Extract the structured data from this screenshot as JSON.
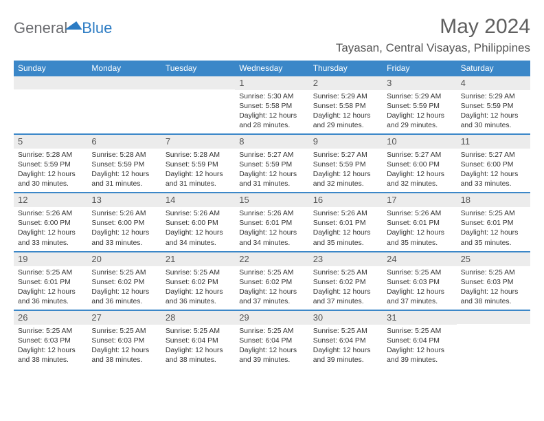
{
  "brand": {
    "part1": "General",
    "part2": "Blue"
  },
  "title": "May 2024",
  "location": "Tayasan, Central Visayas, Philippines",
  "colors": {
    "header_bg": "#3b87c8",
    "header_text": "#ffffff",
    "band_bg": "#ececec",
    "rule": "#3b87c8",
    "body_text": "#333333",
    "title_text": "#5f5f5f"
  },
  "dow": [
    "Sunday",
    "Monday",
    "Tuesday",
    "Wednesday",
    "Thursday",
    "Friday",
    "Saturday"
  ],
  "weeks": [
    [
      {
        "day": "",
        "sunrise": "",
        "sunset": "",
        "daylight1": "",
        "daylight2": ""
      },
      {
        "day": "",
        "sunrise": "",
        "sunset": "",
        "daylight1": "",
        "daylight2": ""
      },
      {
        "day": "",
        "sunrise": "",
        "sunset": "",
        "daylight1": "",
        "daylight2": ""
      },
      {
        "day": "1",
        "sunrise": "Sunrise: 5:30 AM",
        "sunset": "Sunset: 5:58 PM",
        "daylight1": "Daylight: 12 hours",
        "daylight2": "and 28 minutes."
      },
      {
        "day": "2",
        "sunrise": "Sunrise: 5:29 AM",
        "sunset": "Sunset: 5:58 PM",
        "daylight1": "Daylight: 12 hours",
        "daylight2": "and 29 minutes."
      },
      {
        "day": "3",
        "sunrise": "Sunrise: 5:29 AM",
        "sunset": "Sunset: 5:59 PM",
        "daylight1": "Daylight: 12 hours",
        "daylight2": "and 29 minutes."
      },
      {
        "day": "4",
        "sunrise": "Sunrise: 5:29 AM",
        "sunset": "Sunset: 5:59 PM",
        "daylight1": "Daylight: 12 hours",
        "daylight2": "and 30 minutes."
      }
    ],
    [
      {
        "day": "5",
        "sunrise": "Sunrise: 5:28 AM",
        "sunset": "Sunset: 5:59 PM",
        "daylight1": "Daylight: 12 hours",
        "daylight2": "and 30 minutes."
      },
      {
        "day": "6",
        "sunrise": "Sunrise: 5:28 AM",
        "sunset": "Sunset: 5:59 PM",
        "daylight1": "Daylight: 12 hours",
        "daylight2": "and 31 minutes."
      },
      {
        "day": "7",
        "sunrise": "Sunrise: 5:28 AM",
        "sunset": "Sunset: 5:59 PM",
        "daylight1": "Daylight: 12 hours",
        "daylight2": "and 31 minutes."
      },
      {
        "day": "8",
        "sunrise": "Sunrise: 5:27 AM",
        "sunset": "Sunset: 5:59 PM",
        "daylight1": "Daylight: 12 hours",
        "daylight2": "and 31 minutes."
      },
      {
        "day": "9",
        "sunrise": "Sunrise: 5:27 AM",
        "sunset": "Sunset: 5:59 PM",
        "daylight1": "Daylight: 12 hours",
        "daylight2": "and 32 minutes."
      },
      {
        "day": "10",
        "sunrise": "Sunrise: 5:27 AM",
        "sunset": "Sunset: 6:00 PM",
        "daylight1": "Daylight: 12 hours",
        "daylight2": "and 32 minutes."
      },
      {
        "day": "11",
        "sunrise": "Sunrise: 5:27 AM",
        "sunset": "Sunset: 6:00 PM",
        "daylight1": "Daylight: 12 hours",
        "daylight2": "and 33 minutes."
      }
    ],
    [
      {
        "day": "12",
        "sunrise": "Sunrise: 5:26 AM",
        "sunset": "Sunset: 6:00 PM",
        "daylight1": "Daylight: 12 hours",
        "daylight2": "and 33 minutes."
      },
      {
        "day": "13",
        "sunrise": "Sunrise: 5:26 AM",
        "sunset": "Sunset: 6:00 PM",
        "daylight1": "Daylight: 12 hours",
        "daylight2": "and 33 minutes."
      },
      {
        "day": "14",
        "sunrise": "Sunrise: 5:26 AM",
        "sunset": "Sunset: 6:00 PM",
        "daylight1": "Daylight: 12 hours",
        "daylight2": "and 34 minutes."
      },
      {
        "day": "15",
        "sunrise": "Sunrise: 5:26 AM",
        "sunset": "Sunset: 6:01 PM",
        "daylight1": "Daylight: 12 hours",
        "daylight2": "and 34 minutes."
      },
      {
        "day": "16",
        "sunrise": "Sunrise: 5:26 AM",
        "sunset": "Sunset: 6:01 PM",
        "daylight1": "Daylight: 12 hours",
        "daylight2": "and 35 minutes."
      },
      {
        "day": "17",
        "sunrise": "Sunrise: 5:26 AM",
        "sunset": "Sunset: 6:01 PM",
        "daylight1": "Daylight: 12 hours",
        "daylight2": "and 35 minutes."
      },
      {
        "day": "18",
        "sunrise": "Sunrise: 5:25 AM",
        "sunset": "Sunset: 6:01 PM",
        "daylight1": "Daylight: 12 hours",
        "daylight2": "and 35 minutes."
      }
    ],
    [
      {
        "day": "19",
        "sunrise": "Sunrise: 5:25 AM",
        "sunset": "Sunset: 6:01 PM",
        "daylight1": "Daylight: 12 hours",
        "daylight2": "and 36 minutes."
      },
      {
        "day": "20",
        "sunrise": "Sunrise: 5:25 AM",
        "sunset": "Sunset: 6:02 PM",
        "daylight1": "Daylight: 12 hours",
        "daylight2": "and 36 minutes."
      },
      {
        "day": "21",
        "sunrise": "Sunrise: 5:25 AM",
        "sunset": "Sunset: 6:02 PM",
        "daylight1": "Daylight: 12 hours",
        "daylight2": "and 36 minutes."
      },
      {
        "day": "22",
        "sunrise": "Sunrise: 5:25 AM",
        "sunset": "Sunset: 6:02 PM",
        "daylight1": "Daylight: 12 hours",
        "daylight2": "and 37 minutes."
      },
      {
        "day": "23",
        "sunrise": "Sunrise: 5:25 AM",
        "sunset": "Sunset: 6:02 PM",
        "daylight1": "Daylight: 12 hours",
        "daylight2": "and 37 minutes."
      },
      {
        "day": "24",
        "sunrise": "Sunrise: 5:25 AM",
        "sunset": "Sunset: 6:03 PM",
        "daylight1": "Daylight: 12 hours",
        "daylight2": "and 37 minutes."
      },
      {
        "day": "25",
        "sunrise": "Sunrise: 5:25 AM",
        "sunset": "Sunset: 6:03 PM",
        "daylight1": "Daylight: 12 hours",
        "daylight2": "and 38 minutes."
      }
    ],
    [
      {
        "day": "26",
        "sunrise": "Sunrise: 5:25 AM",
        "sunset": "Sunset: 6:03 PM",
        "daylight1": "Daylight: 12 hours",
        "daylight2": "and 38 minutes."
      },
      {
        "day": "27",
        "sunrise": "Sunrise: 5:25 AM",
        "sunset": "Sunset: 6:03 PM",
        "daylight1": "Daylight: 12 hours",
        "daylight2": "and 38 minutes."
      },
      {
        "day": "28",
        "sunrise": "Sunrise: 5:25 AM",
        "sunset": "Sunset: 6:04 PM",
        "daylight1": "Daylight: 12 hours",
        "daylight2": "and 38 minutes."
      },
      {
        "day": "29",
        "sunrise": "Sunrise: 5:25 AM",
        "sunset": "Sunset: 6:04 PM",
        "daylight1": "Daylight: 12 hours",
        "daylight2": "and 39 minutes."
      },
      {
        "day": "30",
        "sunrise": "Sunrise: 5:25 AM",
        "sunset": "Sunset: 6:04 PM",
        "daylight1": "Daylight: 12 hours",
        "daylight2": "and 39 minutes."
      },
      {
        "day": "31",
        "sunrise": "Sunrise: 5:25 AM",
        "sunset": "Sunset: 6:04 PM",
        "daylight1": "Daylight: 12 hours",
        "daylight2": "and 39 minutes."
      },
      {
        "day": "",
        "sunrise": "",
        "sunset": "",
        "daylight1": "",
        "daylight2": ""
      }
    ]
  ]
}
